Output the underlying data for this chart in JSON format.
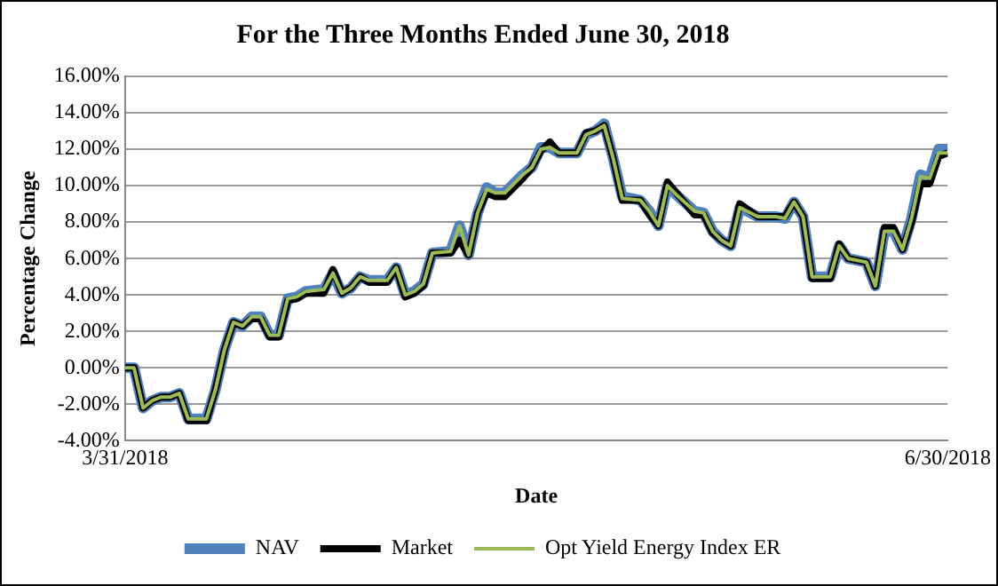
{
  "chart_data": {
    "type": "line",
    "title": "For the Three Months Ended June 30, 2018",
    "xlabel": "Date",
    "ylabel": "Percentage Change",
    "x": [
      "2018-03-31",
      "2018-04-01",
      "2018-04-02",
      "2018-04-03",
      "2018-04-04",
      "2018-04-05",
      "2018-04-06",
      "2018-04-07",
      "2018-04-09",
      "2018-04-10",
      "2018-04-11",
      "2018-04-12",
      "2018-04-13",
      "2018-04-14",
      "2018-04-15",
      "2018-04-16",
      "2018-04-17",
      "2018-04-18",
      "2018-04-19",
      "2018-04-20",
      "2018-04-22",
      "2018-04-23",
      "2018-04-24",
      "2018-04-25",
      "2018-04-26",
      "2018-04-27",
      "2018-04-29",
      "2018-04-30",
      "2018-05-01",
      "2018-05-02",
      "2018-05-03",
      "2018-05-04",
      "2018-05-06",
      "2018-05-07",
      "2018-05-08",
      "2018-05-09",
      "2018-05-10",
      "2018-05-11",
      "2018-05-12",
      "2018-05-14",
      "2018-05-15",
      "2018-05-16",
      "2018-05-17",
      "2018-05-18",
      "2018-05-20",
      "2018-05-21",
      "2018-05-22",
      "2018-05-23",
      "2018-05-24",
      "2018-05-25",
      "2018-05-27",
      "2018-05-28",
      "2018-05-29",
      "2018-05-30",
      "2018-05-31",
      "2018-06-02",
      "2018-06-03",
      "2018-06-04",
      "2018-06-05",
      "2018-06-06",
      "2018-06-07",
      "2018-06-09",
      "2018-06-11",
      "2018-06-12",
      "2018-06-13",
      "2018-06-14",
      "2018-06-15",
      "2018-06-17",
      "2018-06-18",
      "2018-06-19",
      "2018-06-21",
      "2018-06-22",
      "2018-06-23",
      "2018-06-24",
      "2018-06-25",
      "2018-06-26",
      "2018-06-27",
      "2018-06-28",
      "2018-06-29",
      "2018-06-30"
    ],
    "series": [
      {
        "name": "NAV",
        "color": "#4f81bd",
        "values": [
          0.0,
          0.0,
          -2.2,
          -1.8,
          -1.6,
          -1.6,
          -1.4,
          -2.8,
          -2.8,
          -1.2,
          1.0,
          2.5,
          2.3,
          2.8,
          2.8,
          1.8,
          1.8,
          3.8,
          3.9,
          4.2,
          4.3,
          5.2,
          4.1,
          4.4,
          5.0,
          4.8,
          4.8,
          5.5,
          4.0,
          4.2,
          4.6,
          6.3,
          6.4,
          7.8,
          6.2,
          8.5,
          9.9,
          9.6,
          9.6,
          10.6,
          11.0,
          12.1,
          12.1,
          11.8,
          11.8,
          12.8,
          13.0,
          13.4,
          11.5,
          9.4,
          9.2,
          8.6,
          7.8,
          10.0,
          9.5,
          8.6,
          8.5,
          7.5,
          7.0,
          6.7,
          8.8,
          8.3,
          8.3,
          8.2,
          9.1,
          8.3,
          5.0,
          5.0,
          6.7,
          6.0,
          5.8,
          4.5,
          7.5,
          7.5,
          6.5,
          8.2,
          10.6,
          10.4,
          12.0,
          12.0
        ]
      },
      {
        "name": "Market",
        "color": "#000000",
        "values": [
          0.0,
          0.0,
          -2.2,
          -1.8,
          -1.6,
          -1.6,
          -1.4,
          -2.9,
          -2.9,
          -1.2,
          1.0,
          2.5,
          2.3,
          2.7,
          2.7,
          1.7,
          1.7,
          3.7,
          3.8,
          4.1,
          4.1,
          5.4,
          4.1,
          4.4,
          5.0,
          4.7,
          4.7,
          5.5,
          3.9,
          4.1,
          4.5,
          6.3,
          6.3,
          7.0,
          6.2,
          8.5,
          9.6,
          9.4,
          9.4,
          10.4,
          11.0,
          11.9,
          12.4,
          11.8,
          11.8,
          12.9,
          13.0,
          13.3,
          11.5,
          9.2,
          9.2,
          8.4,
          7.8,
          10.2,
          9.6,
          8.4,
          8.4,
          7.4,
          7.0,
          6.7,
          9.0,
          8.3,
          8.3,
          8.3,
          9.1,
          8.3,
          4.9,
          4.9,
          6.8,
          6.0,
          5.8,
          4.5,
          7.7,
          7.7,
          6.5,
          8.0,
          10.1,
          10.1,
          11.6,
          11.8
        ]
      },
      {
        "name": "Opt Yield Energy Index ER",
        "color": "#9bbb59",
        "values": [
          0.0,
          0.0,
          -2.2,
          -1.8,
          -1.6,
          -1.6,
          -1.4,
          -2.8,
          -2.8,
          -1.2,
          1.0,
          2.5,
          2.3,
          2.8,
          2.8,
          1.8,
          1.8,
          3.8,
          3.9,
          4.2,
          4.3,
          5.2,
          4.1,
          4.4,
          5.0,
          4.8,
          4.8,
          5.5,
          4.0,
          4.2,
          4.6,
          6.3,
          6.4,
          7.8,
          6.2,
          8.5,
          9.8,
          9.6,
          9.6,
          10.6,
          11.0,
          12.0,
          12.1,
          11.8,
          11.8,
          12.8,
          13.0,
          13.3,
          11.5,
          9.3,
          9.2,
          8.6,
          7.8,
          10.0,
          9.5,
          8.6,
          8.5,
          7.5,
          7.0,
          6.7,
          8.8,
          8.3,
          8.3,
          8.2,
          9.1,
          8.3,
          5.0,
          5.0,
          6.7,
          6.0,
          5.8,
          4.5,
          7.5,
          7.5,
          6.5,
          8.2,
          10.5,
          10.4,
          11.8,
          11.8
        ]
      }
    ],
    "xlim": [
      "2018-03-31",
      "2018-06-30"
    ],
    "xticks": [
      {
        "value": "2018-03-31",
        "label": "3/31/2018"
      },
      {
        "value": "2018-06-30",
        "label": "6/30/2018"
      }
    ],
    "ylim": [
      -4,
      16
    ],
    "yticks": [
      {
        "value": -4,
        "label": "-4.00%"
      },
      {
        "value": -2,
        "label": "-2.00%"
      },
      {
        "value": 0,
        "label": "0.00%"
      },
      {
        "value": 2,
        "label": "2.00%"
      },
      {
        "value": 4,
        "label": "4.00%"
      },
      {
        "value": 6,
        "label": "6.00%"
      },
      {
        "value": 8,
        "label": "8.00%"
      },
      {
        "value": 10,
        "label": "10.00%"
      },
      {
        "value": 12,
        "label": "12.00%"
      },
      {
        "value": 14,
        "label": "14.00%"
      },
      {
        "value": 16,
        "label": "16.00%"
      }
    ],
    "grid": "y",
    "legend": "bottom",
    "marker": "none",
    "line_style": "solid"
  }
}
